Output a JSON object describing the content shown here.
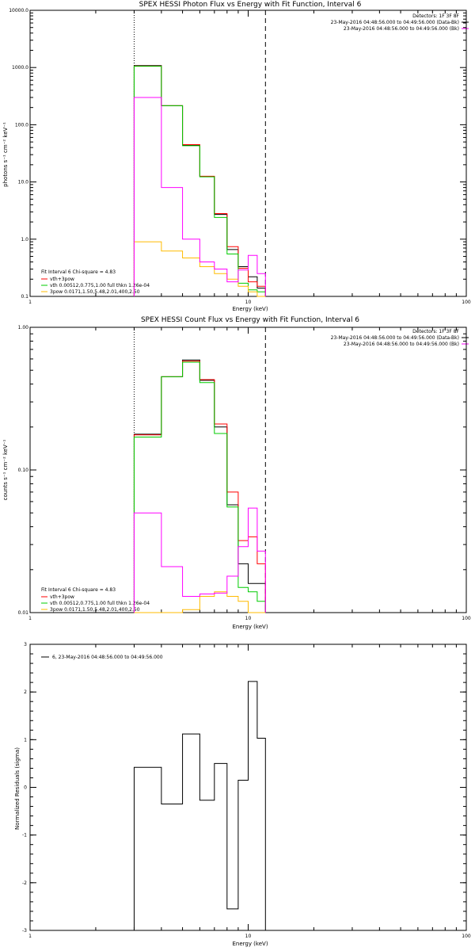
{
  "figure": {
    "xlabel": "Energy (keV)",
    "xticks": [
      "1",
      "10",
      "100"
    ]
  },
  "chart_data": [
    {
      "type": "line",
      "step": true,
      "title": "SPEX HESSI Photon Flux vs Energy with Fit Function, Interval 6",
      "xlabel": "Energy (keV)",
      "ylabel": "photons s⁻¹ cm⁻² keV⁻¹",
      "xscale": "log",
      "yscale": "log",
      "xlim": [
        1,
        100
      ],
      "ylim": [
        0.1,
        10000
      ],
      "yticks": [
        "0.1",
        "1.0",
        "10.0",
        "100.0",
        "1000.0",
        "10000.0"
      ],
      "xticks": [
        "1",
        "10",
        "100"
      ],
      "vlines": [
        {
          "x": 3.0,
          "style": "dotted"
        },
        {
          "x": 12.0,
          "style": "dashed"
        }
      ],
      "header": [
        "Detectors: 1F 3F 8F",
        "23-May-2016 04:48:56.000 to 04:49:56.000 (Data-Bk)",
        "23-May-2016 04:48:56.000 to 04:49:56.000 (Bk)"
      ],
      "legend": [
        "Fit Interval 6   Chi-square = 4.83",
        "vth+3pow",
        "vth 0.00512,0.775,1.00  full thkn 1.26e-04",
        "3pow 0.0171,1.50,5.48,2.01,400,2.50"
      ],
      "edges": [
        3.0,
        4.0,
        5.0,
        6.0,
        7.0,
        8.0,
        9.0,
        10.0,
        11.0,
        12.0
      ],
      "series": [
        {
          "name": "23-May-2016 04:48:56.000 to 04:49:56.000 (Data-Bk)",
          "color": "#000000",
          "values": [
            1080,
            215,
            44,
            12.5,
            2.7,
            0.66,
            0.33,
            0.22,
            0.14
          ]
        },
        {
          "name": "vth+3pow",
          "color": "#ff0000",
          "values": [
            1060,
            215,
            45,
            12.6,
            2.8,
            0.74,
            0.31,
            0.18,
            0.15
          ]
        },
        {
          "name": "vth 0.00512,0.775,1.00  full thkn 1.26e-04",
          "color": "#00cc00",
          "values": [
            1050,
            215,
            43,
            12.3,
            2.4,
            0.55,
            0.17,
            0.13,
            0.12
          ]
        },
        {
          "name": "3pow 0.0171,1.50,5.48,2.01,400,2.50",
          "color": "#ffbb00",
          "values": [
            0.9,
            0.62,
            0.47,
            0.33,
            0.25,
            0.2,
            0.15,
            0.12,
            0.1
          ]
        },
        {
          "name": "23-May-2016 04:48:56.000 to 04:49:56.000 (Bk)",
          "color": "#ff00ff",
          "values": [
            300,
            8.0,
            1.0,
            0.4,
            0.3,
            0.18,
            0.29,
            0.52,
            0.25
          ]
        }
      ]
    },
    {
      "type": "line",
      "step": true,
      "title": "SPEX HESSI Count Flux vs Energy with Fit Function, Interval 6",
      "xlabel": "Energy (keV)",
      "ylabel": "counts s⁻¹ cm⁻² keV⁻¹",
      "xscale": "log",
      "yscale": "log",
      "xlim": [
        1,
        100
      ],
      "ylim": [
        0.01,
        1.0
      ],
      "yticks": [
        "0.01",
        "0.10",
        "1.00"
      ],
      "xticks": [
        "1",
        "10",
        "100"
      ],
      "vlines": [
        {
          "x": 3.0,
          "style": "dotted"
        },
        {
          "x": 12.0,
          "style": "dashed"
        }
      ],
      "header": [
        "Detectors: 1F 3F 8F",
        "23-May-2016 04:48:56.000 to 04:49:56.000 (Data-Bk)",
        "23-May-2016 04:48:56.000 to 04:49:56.000 (Bk)"
      ],
      "legend": [
        "Fit Interval 6   Chi-square = 4.83",
        "vth+3pow",
        "vth 0.00512,0.775,1.00  full thkn 1.26e-04",
        "3pow 0.0171,1.50,5.48,2.01,400,2.50"
      ],
      "edges": [
        3.0,
        4.0,
        5.0,
        6.0,
        7.0,
        8.0,
        9.0,
        10.0,
        11.0,
        12.0
      ],
      "series": [
        {
          "name": "23-May-2016 04:48:56.000 to 04:49:56.000 (Data-Bk)",
          "color": "#000000",
          "values": [
            0.178,
            0.45,
            0.59,
            0.425,
            0.2,
            0.057,
            0.022,
            0.016,
            0.016
          ]
        },
        {
          "name": "vth+3pow",
          "color": "#ff0000",
          "values": [
            0.176,
            0.45,
            0.58,
            0.43,
            0.21,
            0.07,
            0.032,
            0.034,
            0.022
          ]
        },
        {
          "name": "vth 0.00512,0.775,1.00  full thkn 1.26e-04",
          "color": "#00cc00",
          "values": [
            0.17,
            0.45,
            0.57,
            0.41,
            0.18,
            0.055,
            0.015,
            0.014,
            0.012
          ]
        },
        {
          "name": "3pow 0.0171,1.50,5.48,2.01,400,2.50",
          "color": "#ffbb00",
          "values": [
            0.0085,
            0.009,
            0.0105,
            0.013,
            0.014,
            0.013,
            0.012,
            0.01,
            0.01
          ]
        },
        {
          "name": "23-May-2016 04:48:56.000 to 04:49:56.000 (Bk)",
          "color": "#ff00ff",
          "values": [
            0.05,
            0.021,
            0.013,
            0.0135,
            0.0137,
            0.018,
            0.029,
            0.054,
            0.027
          ]
        }
      ]
    },
    {
      "type": "line",
      "step": true,
      "title": "",
      "xlabel": "Energy (keV)",
      "ylabel": "Normalized Residuals (sigma)",
      "xscale": "log",
      "yscale": "linear",
      "xlim": [
        1,
        100
      ],
      "ylim": [
        -3,
        3
      ],
      "yticks": [
        "3",
        "2",
        "1",
        "0",
        "-1",
        "-2",
        "-3"
      ],
      "xticks": [
        "1",
        "10",
        "100"
      ],
      "legend": [
        "6, 23-May-2016 04:48:56.000 to 04:49:56.000"
      ],
      "edges": [
        3.0,
        4.0,
        5.0,
        6.0,
        7.0,
        8.0,
        9.0,
        10.0,
        11.0,
        12.0
      ],
      "series": [
        {
          "name": "6, 23-May-2016 04:48:56.000 to 04:49:56.000",
          "color": "#000000",
          "values": [
            0.42,
            -0.35,
            1.12,
            -0.27,
            0.5,
            -2.55,
            0.15,
            2.22,
            1.03
          ]
        }
      ]
    }
  ]
}
